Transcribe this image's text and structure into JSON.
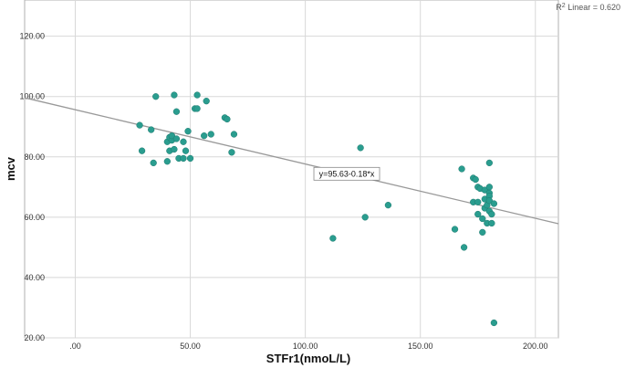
{
  "chart_data": {
    "type": "scatter",
    "xlabel": "STFr1(nmoL/L)",
    "ylabel": "mcv",
    "xlim": [
      -22,
      210
    ],
    "ylim": [
      20,
      132
    ],
    "x_ticks": [
      0,
      50,
      100,
      150,
      200
    ],
    "x_tick_labels": [
      ".00",
      "50.00",
      "100.00",
      "150.00",
      "200.00"
    ],
    "y_ticks": [
      20,
      40,
      60,
      80,
      100,
      120
    ],
    "y_tick_labels": [
      "20.00",
      "40.00",
      "60.00",
      "80.00",
      "100.00",
      "120.00"
    ],
    "grid": true,
    "point_color": "#2a9d8f",
    "line_color": "#999999",
    "fit_line": {
      "intercept": 95.63,
      "slope": -0.18
    },
    "equation_label": "y=95.63-0.18*x",
    "r2_label_prefix": "R",
    "r2_label_sup": "2",
    "r2_label_suffix": " Linear = 0.620",
    "points": [
      {
        "x": 28,
        "y": 90.5
      },
      {
        "x": 29,
        "y": 82
      },
      {
        "x": 33,
        "y": 89
      },
      {
        "x": 34,
        "y": 78
      },
      {
        "x": 35,
        "y": 100
      },
      {
        "x": 40,
        "y": 78.5
      },
      {
        "x": 40,
        "y": 85
      },
      {
        "x": 41,
        "y": 82
      },
      {
        "x": 41,
        "y": 86.5
      },
      {
        "x": 42,
        "y": 85.5
      },
      {
        "x": 42,
        "y": 87
      },
      {
        "x": 43,
        "y": 82.5
      },
      {
        "x": 43,
        "y": 100.5
      },
      {
        "x": 44,
        "y": 95
      },
      {
        "x": 44,
        "y": 86
      },
      {
        "x": 45,
        "y": 79.5
      },
      {
        "x": 47,
        "y": 85
      },
      {
        "x": 47,
        "y": 79.5
      },
      {
        "x": 48,
        "y": 82
      },
      {
        "x": 49,
        "y": 88.5
      },
      {
        "x": 50,
        "y": 79.5
      },
      {
        "x": 52,
        "y": 96
      },
      {
        "x": 53,
        "y": 100.5
      },
      {
        "x": 53,
        "y": 96
      },
      {
        "x": 56,
        "y": 87
      },
      {
        "x": 57,
        "y": 98.5
      },
      {
        "x": 59,
        "y": 87.5
      },
      {
        "x": 65,
        "y": 93
      },
      {
        "x": 66,
        "y": 92.5
      },
      {
        "x": 68,
        "y": 81.5
      },
      {
        "x": 69,
        "y": 87.5
      },
      {
        "x": 112,
        "y": 53
      },
      {
        "x": 124,
        "y": 83
      },
      {
        "x": 125,
        "y": 75
      },
      {
        "x": 126,
        "y": 60
      },
      {
        "x": 136,
        "y": 64
      },
      {
        "x": 165,
        "y": 56
      },
      {
        "x": 168,
        "y": 76
      },
      {
        "x": 169,
        "y": 50
      },
      {
        "x": 173,
        "y": 73
      },
      {
        "x": 173,
        "y": 65
      },
      {
        "x": 174,
        "y": 72.5
      },
      {
        "x": 175,
        "y": 70
      },
      {
        "x": 175,
        "y": 65
      },
      {
        "x": 175,
        "y": 61
      },
      {
        "x": 176,
        "y": 69.5
      },
      {
        "x": 177,
        "y": 59.5
      },
      {
        "x": 177,
        "y": 55
      },
      {
        "x": 178,
        "y": 69
      },
      {
        "x": 178,
        "y": 66
      },
      {
        "x": 178,
        "y": 63
      },
      {
        "x": 179,
        "y": 64
      },
      {
        "x": 179,
        "y": 58
      },
      {
        "x": 180,
        "y": 78
      },
      {
        "x": 180,
        "y": 70
      },
      {
        "x": 180,
        "y": 68
      },
      {
        "x": 180,
        "y": 67
      },
      {
        "x": 180,
        "y": 65.5
      },
      {
        "x": 180,
        "y": 62
      },
      {
        "x": 181,
        "y": 61
      },
      {
        "x": 181,
        "y": 58
      },
      {
        "x": 182,
        "y": 64.5
      },
      {
        "x": 182,
        "y": 25
      }
    ]
  }
}
